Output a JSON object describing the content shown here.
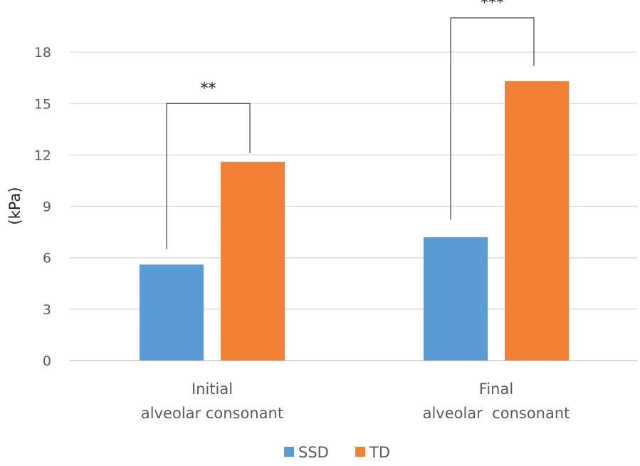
{
  "chart_data": {
    "type": "bar",
    "ylabel": "(kPa)",
    "ylim": [
      0,
      18
    ],
    "yticks": [
      0,
      3,
      6,
      9,
      12,
      15,
      18
    ],
    "grid": true,
    "legend_position": "bottom",
    "categories": [
      [
        "Initial",
        "alveolar consonant"
      ],
      [
        "Final",
        "alveolar  consonant"
      ]
    ],
    "series": [
      {
        "name": "SSD",
        "color": "#5b9bd5",
        "values": [
          5.6,
          7.2
        ]
      },
      {
        "name": "TD",
        "color": "#f28136",
        "values": [
          11.6,
          16.3
        ]
      }
    ],
    "annotations": [
      {
        "category": 0,
        "text": "**",
        "left_y": 6.5,
        "right_y": 12.1,
        "top_y": 15.0
      },
      {
        "category": 1,
        "text": "***",
        "left_y": 8.2,
        "right_y": 17.2,
        "top_y": 20.0
      }
    ]
  }
}
